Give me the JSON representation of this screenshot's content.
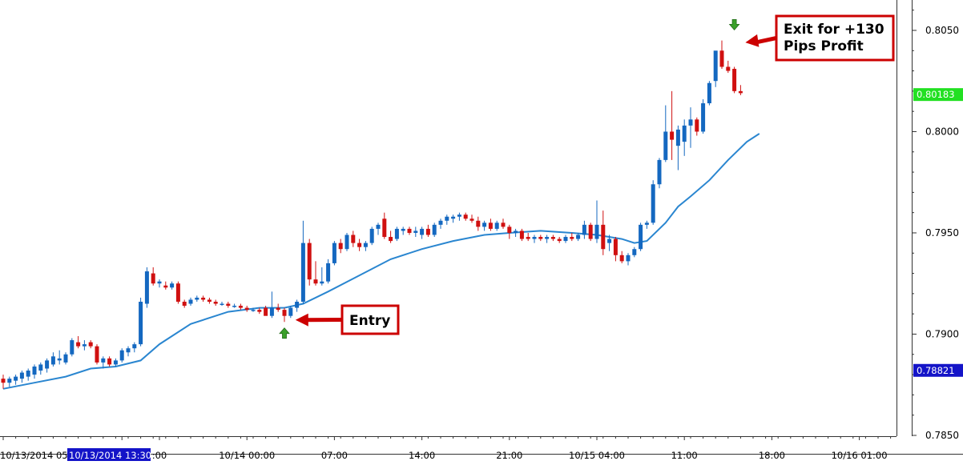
{
  "chart_data": {
    "type": "candlestick",
    "y_ticks": [
      "0.8050",
      "0.8000",
      "0.7950",
      "0.7900",
      "0.7850"
    ],
    "y_tick_values": [
      0.805,
      0.8,
      0.795,
      0.79,
      0.785
    ],
    "ylim": [
      0.7833,
      0.8065
    ],
    "x_tick_labels": [
      {
        "text": "10/13/2014 05:",
        "idx": 0
      },
      {
        "text": "10/13/2014 13:30",
        "idx": 19,
        "highlight": true
      },
      {
        "text": ":00",
        "idx": 25
      },
      {
        "text": "10/14 00:00",
        "idx": 39
      },
      {
        "text": "07:00",
        "idx": 53
      },
      {
        "text": "14:00",
        "idx": 67
      },
      {
        "text": "21:00",
        "idx": 81
      },
      {
        "text": "10/15 04:00",
        "idx": 95
      },
      {
        "text": "11:00",
        "idx": 109
      },
      {
        "text": "18:00",
        "idx": 123
      },
      {
        "text": "10/16 01:00",
        "idx": 137
      }
    ],
    "price_labels": [
      {
        "text": "0.80183",
        "value": 0.80183,
        "bg": "#22e022",
        "fg": "#ffffff"
      },
      {
        "text": "0.78821",
        "value": 0.78821,
        "bg": "#1414c8",
        "fg": "#ffffff"
      }
    ],
    "candles": [
      [
        0.7878,
        0.788,
        0.7873,
        0.7876
      ],
      [
        0.7876,
        0.7879,
        0.7874,
        0.7878
      ],
      [
        0.7877,
        0.788,
        0.7875,
        0.7879
      ],
      [
        0.7878,
        0.7882,
        0.7876,
        0.7881
      ],
      [
        0.7879,
        0.7883,
        0.7877,
        0.7882
      ],
      [
        0.788,
        0.7885,
        0.7878,
        0.7884
      ],
      [
        0.7882,
        0.7886,
        0.788,
        0.7885
      ],
      [
        0.7883,
        0.7888,
        0.7881,
        0.7887
      ],
      [
        0.7885,
        0.7891,
        0.7884,
        0.7889
      ],
      [
        0.7887,
        0.7892,
        0.7885,
        0.7888
      ],
      [
        0.7886,
        0.7891,
        0.7885,
        0.789
      ],
      [
        0.789,
        0.7898,
        0.7889,
        0.7897
      ],
      [
        0.7896,
        0.7899,
        0.7893,
        0.7894
      ],
      [
        0.7894,
        0.7897,
        0.7892,
        0.7895
      ],
      [
        0.7896,
        0.7897,
        0.7893,
        0.7894
      ],
      [
        0.7894,
        0.7895,
        0.7885,
        0.7886
      ],
      [
        0.7886,
        0.7889,
        0.7883,
        0.7888
      ],
      [
        0.7888,
        0.7889,
        0.7884,
        0.7885
      ],
      [
        0.7885,
        0.7888,
        0.7884,
        0.7887
      ],
      [
        0.7887,
        0.7893,
        0.7886,
        0.7892
      ],
      [
        0.7891,
        0.7894,
        0.7889,
        0.7893
      ],
      [
        0.7893,
        0.7896,
        0.7891,
        0.7895
      ],
      [
        0.7895,
        0.7918,
        0.7894,
        0.7916
      ],
      [
        0.7915,
        0.7933,
        0.7913,
        0.7931
      ],
      [
        0.793,
        0.7933,
        0.7924,
        0.7925
      ],
      [
        0.7925,
        0.7927,
        0.7923,
        0.7926
      ],
      [
        0.7924,
        0.7926,
        0.7922,
        0.7923
      ],
      [
        0.7923,
        0.7926,
        0.7922,
        0.7925
      ],
      [
        0.7925,
        0.7926,
        0.7915,
        0.7916
      ],
      [
        0.7916,
        0.7917,
        0.7913,
        0.7914
      ],
      [
        0.7915,
        0.7918,
        0.7914,
        0.7917
      ],
      [
        0.7917,
        0.7919,
        0.7916,
        0.7918
      ],
      [
        0.7918,
        0.7919,
        0.7916,
        0.7917
      ],
      [
        0.7917,
        0.7918,
        0.7915,
        0.7916
      ],
      [
        0.7916,
        0.7917,
        0.7914,
        0.7915
      ],
      [
        0.7915,
        0.7916,
        0.7914,
        0.7915
      ],
      [
        0.7915,
        0.7916,
        0.7913,
        0.7914
      ],
      [
        0.7914,
        0.7915,
        0.7913,
        0.7914
      ],
      [
        0.7914,
        0.7915,
        0.7912,
        0.7913
      ],
      [
        0.7913,
        0.7914,
        0.7911,
        0.7912
      ],
      [
        0.7912,
        0.7913,
        0.7911,
        0.7912
      ],
      [
        0.7912,
        0.7913,
        0.791,
        0.7911
      ],
      [
        0.7913,
        0.7914,
        0.791,
        0.7909
      ],
      [
        0.7909,
        0.7921,
        0.7908,
        0.7913
      ],
      [
        0.7913,
        0.7915,
        0.7911,
        0.7912
      ],
      [
        0.7912,
        0.7913,
        0.7906,
        0.7909
      ],
      [
        0.7909,
        0.7914,
        0.7908,
        0.7913
      ],
      [
        0.7913,
        0.7917,
        0.7911,
        0.7916
      ],
      [
        0.7916,
        0.7956,
        0.7915,
        0.7945
      ],
      [
        0.7945,
        0.7947,
        0.7924,
        0.7927
      ],
      [
        0.7927,
        0.7936,
        0.7924,
        0.7925
      ],
      [
        0.7925,
        0.7933,
        0.7924,
        0.7926
      ],
      [
        0.7926,
        0.7937,
        0.7925,
        0.7935
      ],
      [
        0.7935,
        0.7946,
        0.7934,
        0.7945
      ],
      [
        0.7945,
        0.7947,
        0.794,
        0.7942
      ],
      [
        0.7942,
        0.795,
        0.7941,
        0.7949
      ],
      [
        0.7949,
        0.7951,
        0.7943,
        0.7945
      ],
      [
        0.7945,
        0.7947,
        0.7941,
        0.7943
      ],
      [
        0.7943,
        0.7946,
        0.7941,
        0.7945
      ],
      [
        0.7945,
        0.7953,
        0.7944,
        0.7952
      ],
      [
        0.7952,
        0.7955,
        0.7949,
        0.7954
      ],
      [
        0.7957,
        0.796,
        0.7947,
        0.7948
      ],
      [
        0.7948,
        0.7951,
        0.7945,
        0.7946
      ],
      [
        0.7947,
        0.7953,
        0.7946,
        0.7952
      ],
      [
        0.7951,
        0.7953,
        0.7949,
        0.7952
      ],
      [
        0.7952,
        0.7953,
        0.7949,
        0.795
      ],
      [
        0.795,
        0.7953,
        0.7948,
        0.7951
      ],
      [
        0.7949,
        0.7953,
        0.7947,
        0.7952
      ],
      [
        0.7952,
        0.7954,
        0.7948,
        0.7949
      ],
      [
        0.7949,
        0.7955,
        0.7948,
        0.7954
      ],
      [
        0.7954,
        0.7957,
        0.7952,
        0.7956
      ],
      [
        0.7956,
        0.7959,
        0.7954,
        0.7958
      ],
      [
        0.7957,
        0.7959,
        0.7955,
        0.7958
      ],
      [
        0.7958,
        0.796,
        0.7956,
        0.7959
      ],
      [
        0.7959,
        0.796,
        0.7956,
        0.7957
      ],
      [
        0.7957,
        0.7959,
        0.7955,
        0.7956
      ],
      [
        0.7956,
        0.7958,
        0.7951,
        0.7953
      ],
      [
        0.7953,
        0.7956,
        0.7951,
        0.7955
      ],
      [
        0.7955,
        0.7957,
        0.7951,
        0.7952
      ],
      [
        0.7952,
        0.7956,
        0.7951,
        0.7955
      ],
      [
        0.7955,
        0.7957,
        0.7952,
        0.7953
      ],
      [
        0.7953,
        0.7954,
        0.7947,
        0.795
      ],
      [
        0.795,
        0.7952,
        0.7948,
        0.7951
      ],
      [
        0.7951,
        0.7952,
        0.7946,
        0.7947
      ],
      [
        0.7948,
        0.795,
        0.7946,
        0.7947
      ],
      [
        0.7947,
        0.7949,
        0.7945,
        0.7948
      ],
      [
        0.7948,
        0.7949,
        0.7946,
        0.7947
      ],
      [
        0.7947,
        0.7949,
        0.7945,
        0.7948
      ],
      [
        0.7948,
        0.7949,
        0.7946,
        0.7947
      ],
      [
        0.7947,
        0.7948,
        0.7945,
        0.7946
      ],
      [
        0.7946,
        0.7949,
        0.7945,
        0.7948
      ],
      [
        0.7948,
        0.795,
        0.7946,
        0.7947
      ],
      [
        0.7947,
        0.795,
        0.7946,
        0.7949
      ],
      [
        0.7949,
        0.7956,
        0.7947,
        0.7954
      ],
      [
        0.7954,
        0.7955,
        0.7946,
        0.7947
      ],
      [
        0.7947,
        0.7966,
        0.7945,
        0.7954
      ],
      [
        0.7954,
        0.7961,
        0.7939,
        0.7942
      ],
      [
        0.7945,
        0.7949,
        0.7941,
        0.7947
      ],
      [
        0.7947,
        0.7948,
        0.7936,
        0.7939
      ],
      [
        0.7939,
        0.7941,
        0.7935,
        0.7936
      ],
      [
        0.7936,
        0.794,
        0.7934,
        0.7939
      ],
      [
        0.7939,
        0.7943,
        0.7938,
        0.7942
      ],
      [
        0.7942,
        0.7955,
        0.7941,
        0.7954
      ],
      [
        0.7954,
        0.7956,
        0.7952,
        0.7955
      ],
      [
        0.7955,
        0.7976,
        0.7954,
        0.7974
      ],
      [
        0.7974,
        0.7987,
        0.7972,
        0.7986
      ],
      [
        0.7986,
        0.8013,
        0.7985,
        0.8
      ],
      [
        0.8,
        0.802,
        0.7986,
        0.7996
      ],
      [
        0.7993,
        0.8003,
        0.7981,
        0.8001
      ],
      [
        0.7995,
        0.8006,
        0.7988,
        0.8003
      ],
      [
        0.8003,
        0.8012,
        0.7992,
        0.8006
      ],
      [
        0.8006,
        0.8007,
        0.7998,
        0.8
      ],
      [
        0.8,
        0.8016,
        0.7999,
        0.8014
      ],
      [
        0.8014,
        0.8025,
        0.8013,
        0.8024
      ],
      [
        0.8025,
        0.8039,
        0.8022,
        0.804
      ],
      [
        0.804,
        0.8045,
        0.8031,
        0.8032
      ],
      [
        0.8032,
        0.8035,
        0.8029,
        0.803
      ],
      [
        0.8031,
        0.8032,
        0.8019,
        0.802
      ],
      [
        0.802,
        0.8023,
        0.8018,
        0.8019
      ]
    ],
    "ma_line": [
      [
        0,
        0.7873
      ],
      [
        5,
        0.7876
      ],
      [
        10,
        0.7879
      ],
      [
        14,
        0.7883
      ],
      [
        18,
        0.7884
      ],
      [
        22,
        0.7887
      ],
      [
        25,
        0.7895
      ],
      [
        30,
        0.7905
      ],
      [
        36,
        0.7911
      ],
      [
        41,
        0.7913
      ],
      [
        45,
        0.7913
      ],
      [
        48,
        0.7915
      ],
      [
        52,
        0.7921
      ],
      [
        57,
        0.7929
      ],
      [
        62,
        0.7937
      ],
      [
        67,
        0.7942
      ],
      [
        72,
        0.7946
      ],
      [
        77,
        0.7949
      ],
      [
        81,
        0.795
      ],
      [
        86,
        0.7951
      ],
      [
        91,
        0.795
      ],
      [
        95,
        0.7949
      ],
      [
        99,
        0.7947
      ],
      [
        101,
        0.7945
      ],
      [
        103,
        0.7946
      ],
      [
        106,
        0.7955
      ],
      [
        108,
        0.7963
      ],
      [
        110,
        0.7968
      ],
      [
        113,
        0.7976
      ],
      [
        116,
        0.7986
      ],
      [
        119,
        0.7995
      ],
      [
        121,
        0.7999
      ]
    ],
    "ma_color": "#2a86d0",
    "bull_color": "#1468c0",
    "bear_color": "#d01010",
    "annotations": [
      {
        "type": "arrow-up",
        "idx": 45,
        "price": 0.79003,
        "color": "#3aa02a"
      },
      {
        "type": "arrow-down",
        "idx": 117,
        "price": 0.8053,
        "color": "#3aa02a"
      },
      {
        "type": "callout",
        "lines": [
          "Entry"
        ],
        "target_idx": 46,
        "target_price": 0.7907,
        "color": "#cc0000"
      },
      {
        "type": "callout",
        "lines": [
          "Exit for +130",
          "Pips Profit"
        ],
        "target_idx": 118,
        "target_price": 0.8044,
        "color": "#cc0000"
      }
    ]
  }
}
